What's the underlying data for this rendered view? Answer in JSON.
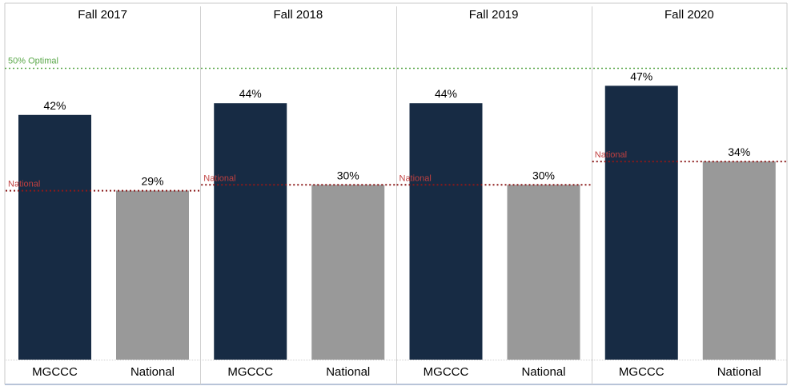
{
  "chart_data": {
    "type": "bar",
    "panels": [
      {
        "title": "Fall 2017",
        "categories": [
          "MGCCC",
          "National"
        ],
        "values": [
          42,
          29
        ],
        "labels": [
          "42%",
          "29%"
        ],
        "reference_line": {
          "label": "National",
          "value": 29
        }
      },
      {
        "title": "Fall 2018",
        "categories": [
          "MGCCC",
          "National"
        ],
        "values": [
          44,
          30
        ],
        "labels": [
          "44%",
          "30%"
        ],
        "reference_line": {
          "label": "National",
          "value": 30
        }
      },
      {
        "title": "Fall 2019",
        "categories": [
          "MGCCC",
          "National"
        ],
        "values": [
          44,
          30
        ],
        "labels": [
          "44%",
          "30%"
        ],
        "reference_line": {
          "label": "National",
          "value": 30
        }
      },
      {
        "title": "Fall 2020",
        "categories": [
          "MGCCC",
          "National"
        ],
        "values": [
          47,
          34
        ],
        "labels": [
          "47%",
          "34%"
        ],
        "reference_line": {
          "label": "National",
          "value": 34
        }
      }
    ],
    "optimal_line": {
      "label": "50% Optimal",
      "value": 50
    },
    "ylim": [
      0,
      55
    ],
    "grid": false,
    "xlabel": "",
    "ylabel": "",
    "colors": {
      "MGCCC": "#172b44",
      "National": "#999999",
      "optimal_line": "#5aa84a",
      "national_line": "#8b1a1a",
      "national_label": "#c04040",
      "divider": "#d0d0d0",
      "text": "#000000"
    }
  }
}
